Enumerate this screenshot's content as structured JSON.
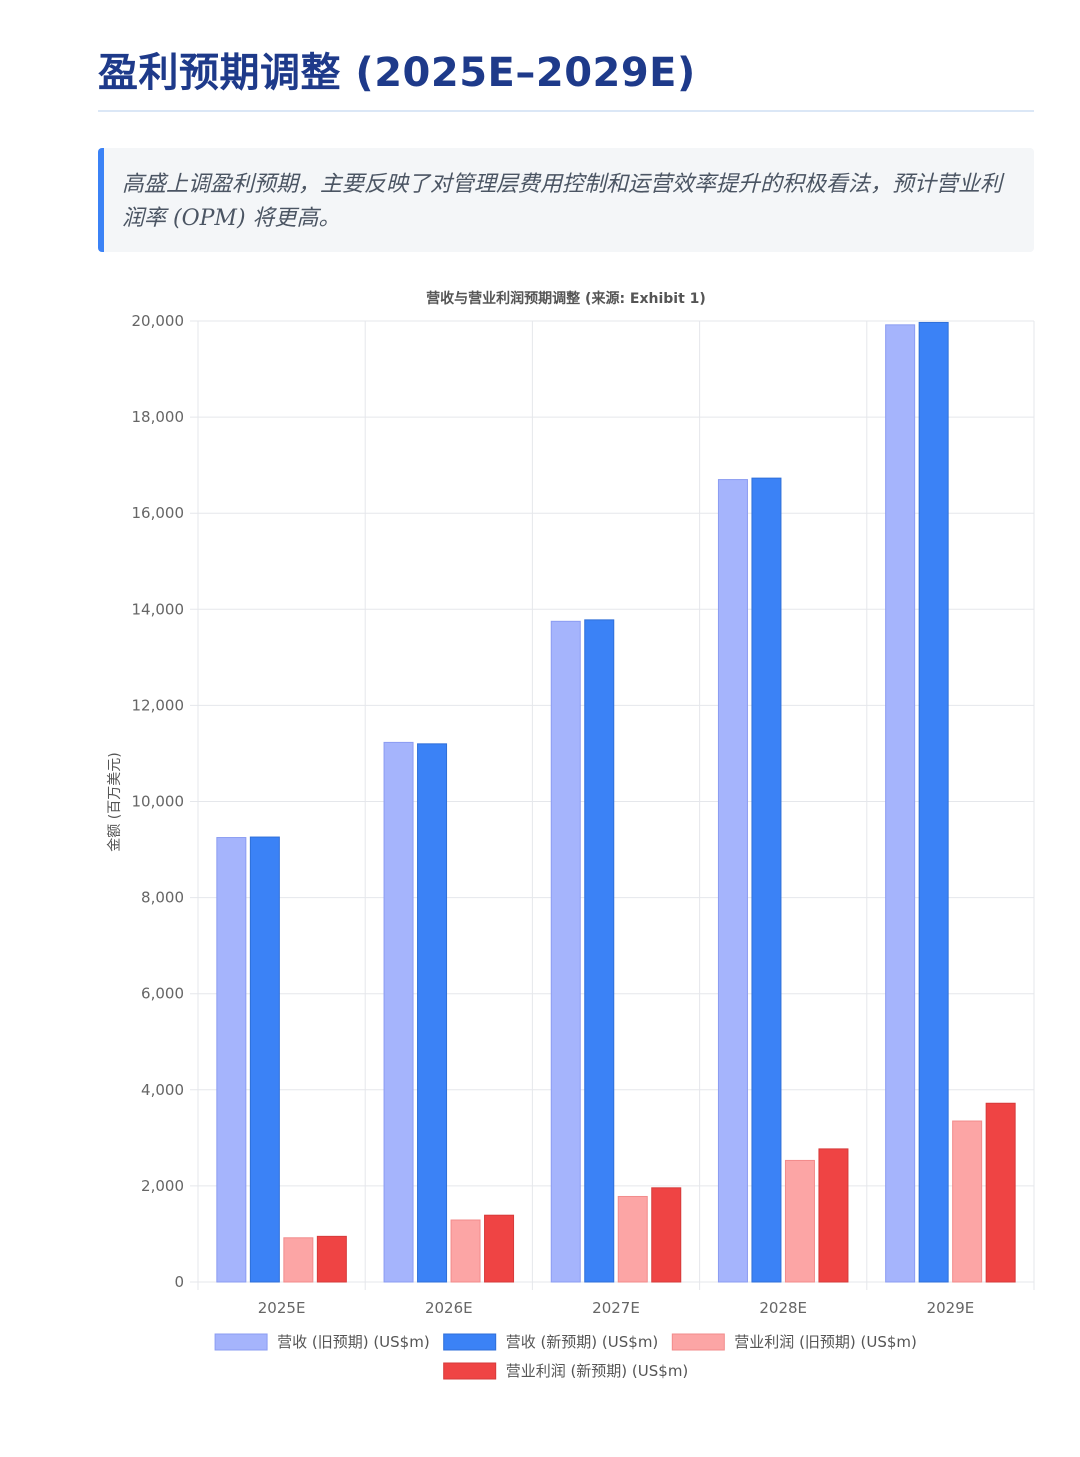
{
  "header": {
    "title": "盈利预期调整 (2025E–2029E)"
  },
  "callout": {
    "text": "高盛上调盈利预期，主要反映了对管理层费用控制和运营效率提升的积极看法，预计营业利润率 (OPM) 将更高。"
  },
  "colors": {
    "accent": "#3b82f6",
    "title": "#1e3a8a"
  },
  "chart_data": {
    "type": "bar",
    "title": "营收与营业利润预期调整 (来源: Exhibit 1)",
    "xlabel": "",
    "ylabel": "金额 (百万美元)",
    "ylim": [
      0,
      20000
    ],
    "yticks": [
      0,
      2000,
      4000,
      6000,
      8000,
      10000,
      12000,
      14000,
      16000,
      18000,
      20000
    ],
    "grid": true,
    "legend_position": "bottom",
    "categories": [
      "2025E",
      "2026E",
      "2027E",
      "2028E",
      "2029E"
    ],
    "series": [
      {
        "name": "营收 (旧预期) (US$m)",
        "color": "#a5b4fc",
        "border": "#8b9cf2",
        "values": [
          9250,
          11230,
          13750,
          16700,
          19920
        ]
      },
      {
        "name": "营收 (新预期) (US$m)",
        "color": "#3b82f6",
        "border": "#2f6fd8",
        "values": [
          9260,
          11200,
          13780,
          16730,
          19970
        ]
      },
      {
        "name": "营业利润 (旧预期) (US$m)",
        "color": "#fca5a5",
        "border": "#f28b8b",
        "values": [
          920,
          1290,
          1780,
          2530,
          3350
        ]
      },
      {
        "name": "营业利润 (新预期) (US$m)",
        "color": "#ef4444",
        "border": "#d63a3a",
        "values": [
          950,
          1390,
          1960,
          2770,
          3720
        ]
      }
    ]
  }
}
